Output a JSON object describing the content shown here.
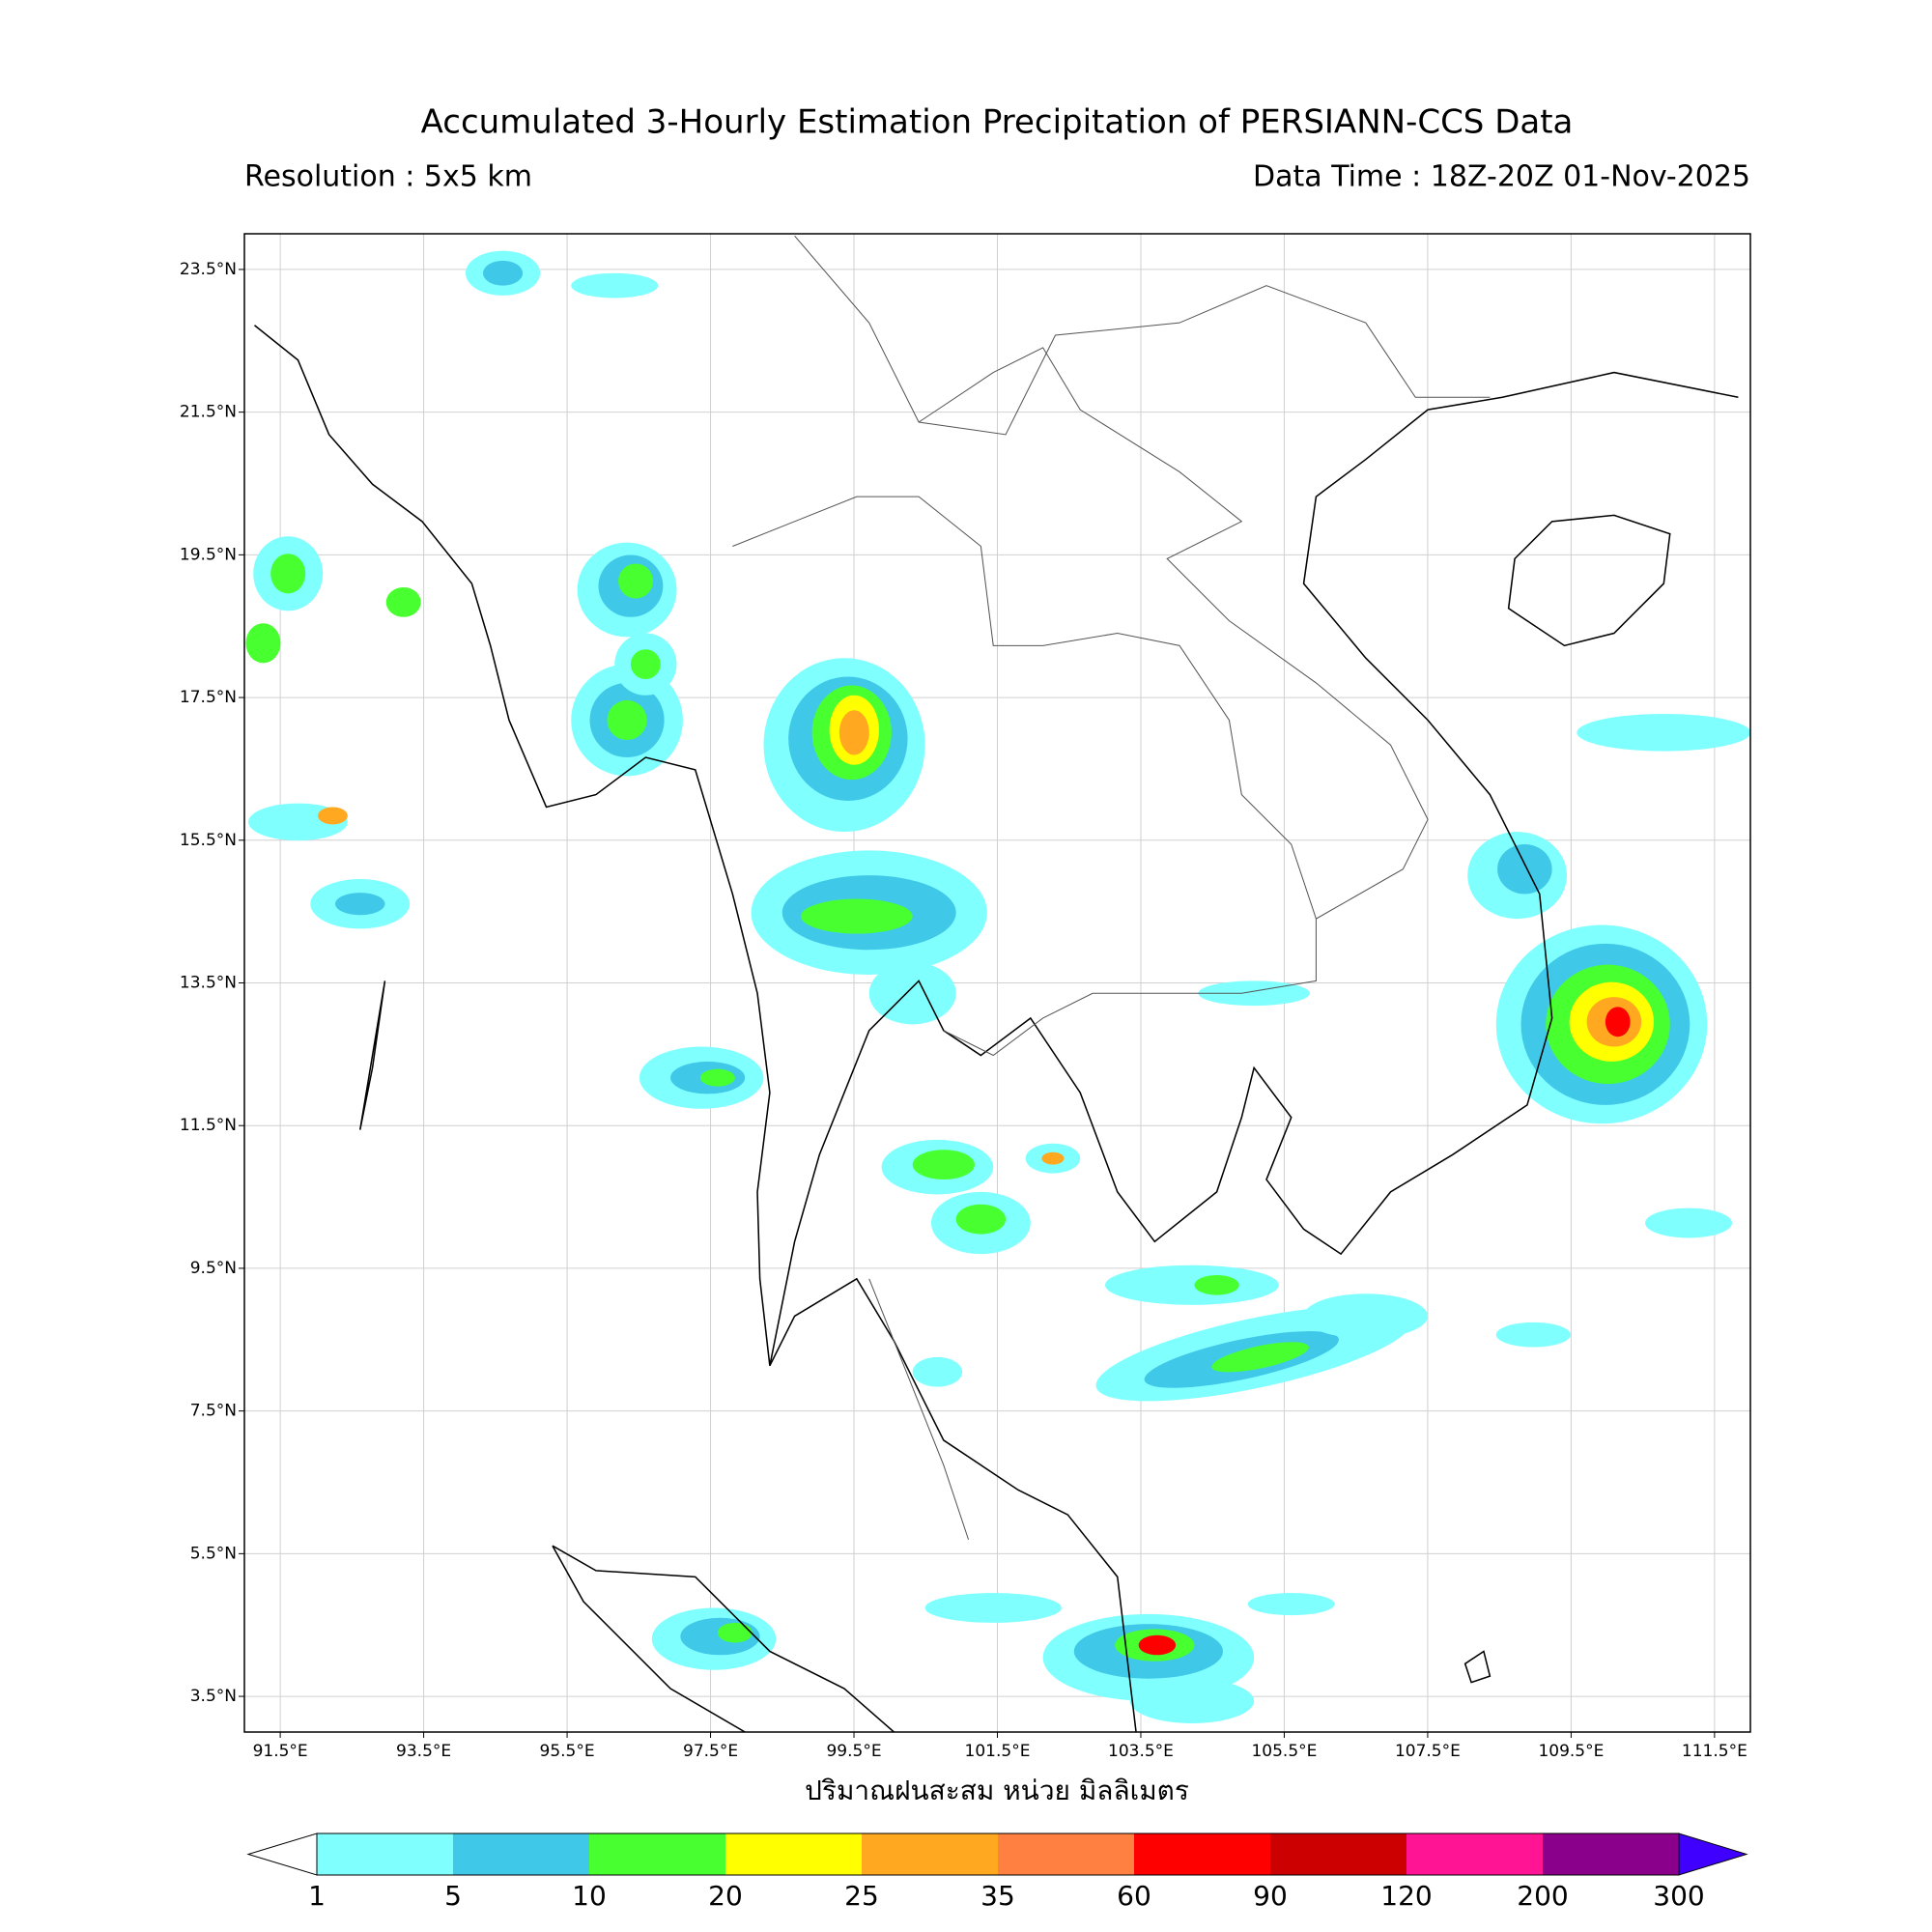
{
  "header": {
    "title": "Accumulated 3-Hourly Estimation Precipitation of PERSIANN-CCS Data",
    "resolution": "Resolution : 5x5 km",
    "data_time": "Data Time : 18Z-20Z 01-Nov-2025"
  },
  "map": {
    "lon_range": [
      91,
      112
    ],
    "lat_range": [
      3,
      24
    ],
    "lon_ticks": [
      {
        "value": 91.5,
        "label": "91.5°E"
      },
      {
        "value": 93.5,
        "label": "93.5°E"
      },
      {
        "value": 95.5,
        "label": "95.5°E"
      },
      {
        "value": 97.5,
        "label": "97.5°E"
      },
      {
        "value": 99.5,
        "label": "99.5°E"
      },
      {
        "value": 101.5,
        "label": "101.5°E"
      },
      {
        "value": 103.5,
        "label": "103.5°E"
      },
      {
        "value": 105.5,
        "label": "105.5°E"
      },
      {
        "value": 107.5,
        "label": "107.5°E"
      },
      {
        "value": 109.5,
        "label": "109.5°E"
      },
      {
        "value": 111.5,
        "label": "111.5°E"
      }
    ],
    "lat_ticks": [
      {
        "value": 3.5,
        "label": "3.5°N"
      },
      {
        "value": 5.5,
        "label": "5.5°N"
      },
      {
        "value": 7.5,
        "label": "7.5°N"
      },
      {
        "value": 9.5,
        "label": "9.5°N"
      },
      {
        "value": 11.5,
        "label": "11.5°N"
      },
      {
        "value": 13.5,
        "label": "13.5°N"
      },
      {
        "value": 15.5,
        "label": "15.5°N"
      },
      {
        "value": 17.5,
        "label": "17.5°N"
      },
      {
        "value": 19.5,
        "label": "19.5°N"
      },
      {
        "value": 21.5,
        "label": "21.5°N"
      },
      {
        "value": 23.5,
        "label": "23.5°N"
      }
    ],
    "xlabel": "ปริมาณฝนสะสม หน่วย มิลลิเมตร"
  },
  "colorbar": {
    "levels": [
      1,
      5,
      10,
      20,
      25,
      35,
      60,
      90,
      120,
      200,
      300
    ],
    "colors": [
      "#80ffff",
      "#40c8e8",
      "#48ff30",
      "#ffff00",
      "#ffa820",
      "#ff8040",
      "#ff0000",
      "#cc0000",
      "#ff1493",
      "#8b008b"
    ],
    "under_color": "#ffffff",
    "over_color": "#3f00ff"
  }
}
